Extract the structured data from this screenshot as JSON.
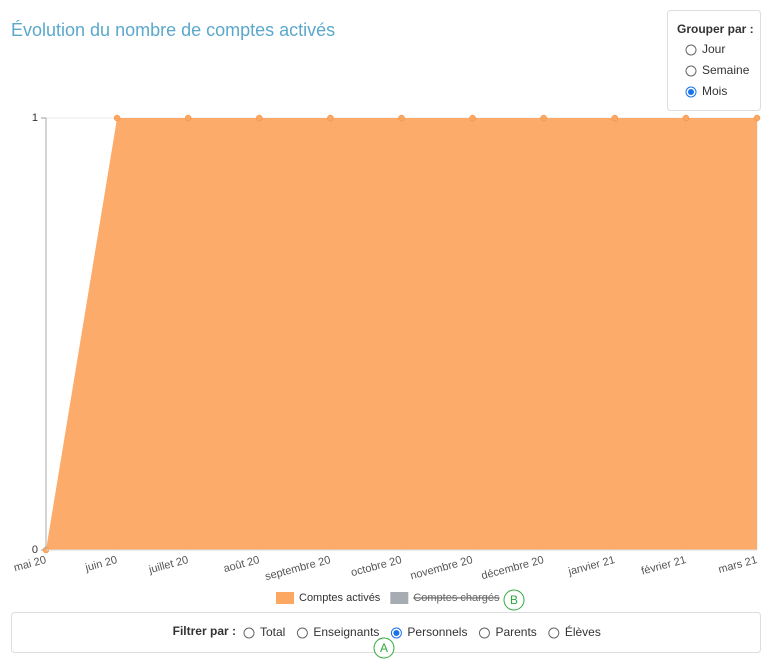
{
  "chart_data": {
    "type": "area",
    "title": "Évolution du nombre de comptes activés",
    "categories": [
      "mai 20",
      "juin 20",
      "juillet 20",
      "août 20",
      "septembre 20",
      "octobre 20",
      "novembre 20",
      "décembre 20",
      "janvier 21",
      "février 21",
      "mars 21"
    ],
    "series": [
      {
        "name": "Comptes activés",
        "color": "#fca762",
        "values": [
          0,
          1,
          1,
          1,
          1,
          1,
          1,
          1,
          1,
          1,
          1
        ]
      },
      {
        "name": "Comptes chargés",
        "color": "#a7abb2",
        "hidden": true
      }
    ],
    "ylim": [
      0,
      1
    ],
    "yticks": [
      0,
      1
    ],
    "grid": true,
    "legend": "bottom"
  },
  "group_by": {
    "label": "Grouper par :",
    "options": [
      {
        "label": "Jour",
        "checked": false
      },
      {
        "label": "Semaine",
        "checked": false
      },
      {
        "label": "Mois",
        "checked": true
      }
    ]
  },
  "filter": {
    "label": "Filtrer par :",
    "options": [
      {
        "label": "Total",
        "checked": false
      },
      {
        "label": "Enseignants",
        "checked": false
      },
      {
        "label": "Personnels",
        "checked": true
      },
      {
        "label": "Parents",
        "checked": false
      },
      {
        "label": "Élèves",
        "checked": false
      }
    ]
  },
  "annotations": [
    "A",
    "B"
  ]
}
